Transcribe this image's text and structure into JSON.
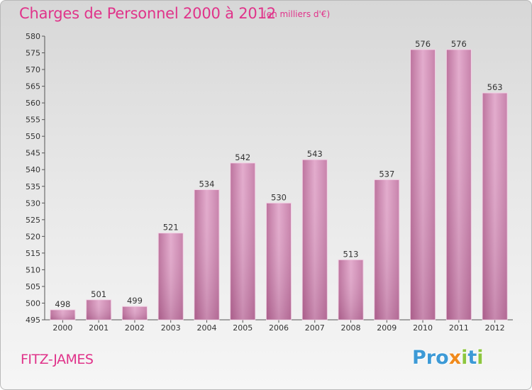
{
  "chart_data": {
    "type": "bar",
    "title": "Charges de Personnel 2000 à 2012",
    "subtitle": "(en milliers d'€)",
    "categories": [
      "2000",
      "2001",
      "2002",
      "2003",
      "2004",
      "2005",
      "2006",
      "2007",
      "2008",
      "2009",
      "2010",
      "2011",
      "2012"
    ],
    "values": [
      498,
      501,
      499,
      521,
      534,
      542,
      530,
      543,
      513,
      537,
      576,
      576,
      563
    ],
    "ylim": [
      495,
      580
    ],
    "yticks": [
      495,
      500,
      505,
      510,
      515,
      520,
      525,
      530,
      535,
      540,
      545,
      550,
      555,
      560,
      565,
      570,
      575,
      580
    ],
    "grid": false,
    "bar_color": "#c77aa7"
  },
  "footer": {
    "city": "FITZ-JAMES",
    "logo_letters": [
      {
        "char": "P",
        "color": "#3d9ad6"
      },
      {
        "char": "r",
        "color": "#3d9ad6"
      },
      {
        "char": "o",
        "color": "#3d9ad6"
      },
      {
        "char": "x",
        "color": "#f08a1c"
      },
      {
        "char": "i",
        "color": "#8dc63f"
      },
      {
        "char": "t",
        "color": "#3d9ad6"
      },
      {
        "char": "i",
        "color": "#8dc63f"
      }
    ]
  }
}
